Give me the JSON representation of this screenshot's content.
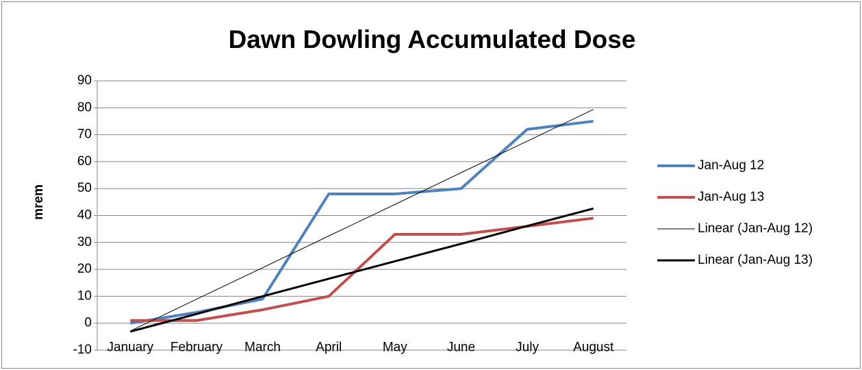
{
  "chart_data": {
    "type": "line",
    "title": "Dawn Dowling Accumulated Dose",
    "y_label": "mrem",
    "categories": [
      "January",
      "February",
      "March",
      "April",
      "May",
      "June",
      "July",
      "August"
    ],
    "series": [
      {
        "name": "Jan-Aug 12",
        "color": "#4f81bd",
        "width": 4,
        "values": [
          0,
          4,
          9,
          48,
          48,
          50,
          72,
          75
        ]
      },
      {
        "name": "Jan-Aug 13",
        "color": "#c0504d",
        "width": 4,
        "values": [
          1,
          1,
          5,
          10,
          33,
          33,
          36,
          39
        ]
      },
      {
        "name": "Linear (Jan-Aug 12)",
        "color": "#000000",
        "width": 1,
        "values": [
          -2.9,
          8.9,
          20.6,
          32.4,
          44.1,
          55.9,
          67.6,
          79.4
        ]
      },
      {
        "name": "Linear (Jan-Aug 13)",
        "color": "#000000",
        "width": 3,
        "values": [
          -3.1,
          3.4,
          10.0,
          16.5,
          23.0,
          29.5,
          36.1,
          42.6
        ]
      }
    ],
    "ylim": [
      -10,
      90
    ],
    "yticks": [
      -10,
      0,
      10,
      20,
      30,
      40,
      50,
      60,
      70,
      80,
      90
    ],
    "grid": true,
    "legend": "right"
  }
}
